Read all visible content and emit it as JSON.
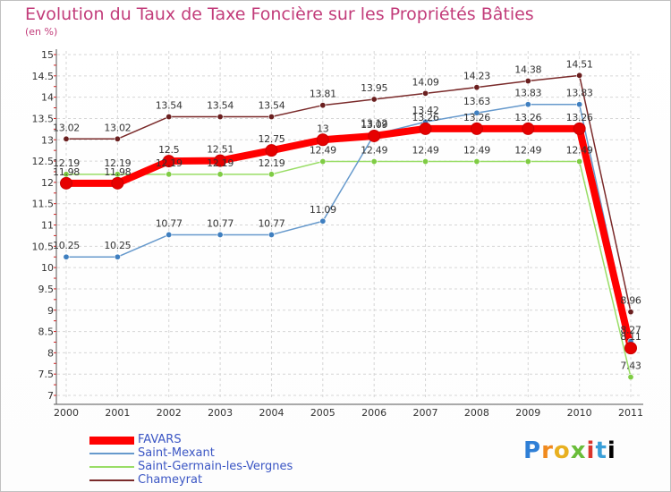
{
  "title": "Evolution du Taux de Taxe Foncière sur les Propriétés Bâties",
  "subtitle": "(en %)",
  "logo_text": "Proxiti",
  "chart_data": {
    "type": "line",
    "title": "Evolution du Taux de Taxe Foncière sur les Propriétés Bâties",
    "ylabel": "(en %)",
    "xlabel": "",
    "categories": [
      "2000",
      "2001",
      "2002",
      "2003",
      "2004",
      "2005",
      "2006",
      "2007",
      "2008",
      "2009",
      "2010",
      "2011"
    ],
    "ylim": [
      7,
      15
    ],
    "yticks": [
      "7",
      "7.5",
      "8",
      "8.5",
      "9",
      "9.5",
      "10",
      "10.5",
      "11",
      "11.5",
      "12",
      "12.5",
      "13",
      "13.5",
      "14",
      "14.5",
      "15"
    ],
    "legend_position": "bottom-left",
    "series": [
      {
        "name": "FAVARS",
        "color": "#ff0000",
        "point_color": "#e60000",
        "values": [
          11.98,
          11.98,
          12.5,
          12.51,
          12.75,
          13,
          13.09,
          13.26,
          13.26,
          13.26,
          13.26,
          8.11
        ],
        "labels": [
          "11.98",
          "11.98",
          "12.5",
          "12.51",
          "12.75",
          "13",
          "13.09",
          "13.26",
          "13.26",
          "13.26",
          "13.26",
          "8.11"
        ]
      },
      {
        "name": "Saint-Mexant",
        "color": "#6699cc",
        "point_color": "#3f7fc0",
        "values": [
          10.25,
          10.25,
          10.77,
          10.77,
          10.77,
          11.09,
          13.12,
          13.42,
          13.63,
          13.83,
          13.83,
          8.27
        ],
        "labels": [
          "10.25",
          "10.25",
          "10.77",
          "10.77",
          "10.77",
          "11.09",
          "13.12",
          "13.42",
          "13.63",
          "13.83",
          "13.83",
          "8.27"
        ]
      },
      {
        "name": "Saint-Germain-les-Vergnes",
        "color": "#99dd66",
        "point_color": "#7fcc44",
        "values": [
          12.19,
          12.19,
          12.19,
          12.19,
          12.19,
          12.49,
          12.49,
          12.49,
          12.49,
          12.49,
          12.49,
          7.43
        ],
        "labels": [
          "12.19",
          "12.19",
          "12.19",
          "12.19",
          "12.19",
          "12.49",
          "12.49",
          "12.49",
          "12.49",
          "12.49",
          "12.49",
          "7.43"
        ]
      },
      {
        "name": "Chameyrat",
        "color": "#7a2a2a",
        "point_color": "#6a1f1f",
        "values": [
          13.02,
          13.02,
          13.54,
          13.54,
          13.54,
          13.81,
          13.95,
          14.09,
          14.23,
          14.38,
          14.51,
          8.96
        ],
        "labels": [
          "13.02",
          "13.02",
          "13.54",
          "13.54",
          "13.54",
          "13.81",
          "13.95",
          "14.09",
          "14.23",
          "14.38",
          "14.51",
          "8.96"
        ]
      }
    ]
  }
}
